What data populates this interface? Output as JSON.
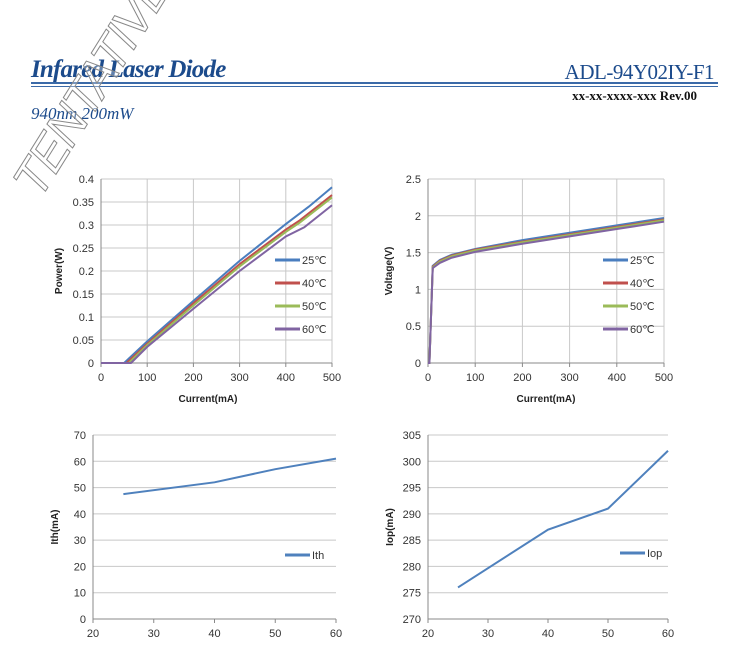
{
  "header": {
    "title": "Infared Laser Diode",
    "model": "ADL-94Y02IY-F1",
    "doc_number": "xx-xx-xxxx-xxx  Rev.00",
    "subtitle": "940nm 200mW",
    "watermark": "TENTATIVE"
  },
  "colors": {
    "25": "#4a7ebf",
    "40": "#c0504d",
    "50": "#9bbb59",
    "60": "#8064a2",
    "single": "#4f81bd"
  },
  "chart_data": [
    {
      "type": "line",
      "title": "",
      "xlabel": "Current(mA)",
      "ylabel": "Power(W)",
      "xlim": [
        0,
        500
      ],
      "ylim": [
        0,
        0.4
      ],
      "xticks": [
        "0",
        "100",
        "200",
        "300",
        "400",
        "500"
      ],
      "yticks": [
        "0",
        "0.05",
        "0.1",
        "0.15",
        "0.2",
        "0.25",
        "0.3",
        "0.35",
        "0.4"
      ],
      "grid": "both",
      "legend": "right",
      "series": [
        {
          "name": "25℃",
          "color_key": "25",
          "points": [
            [
              0,
              0
            ],
            [
              50,
              0
            ],
            [
              100,
              0.047
            ],
            [
              200,
              0.135
            ],
            [
              300,
              0.222
            ],
            [
              400,
              0.302
            ],
            [
              450,
              0.34
            ],
            [
              500,
              0.382
            ]
          ]
        },
        {
          "name": "40℃",
          "color_key": "40",
          "points": [
            [
              0,
              0
            ],
            [
              55,
              0
            ],
            [
              100,
              0.042
            ],
            [
              200,
              0.13
            ],
            [
              300,
              0.215
            ],
            [
              400,
              0.29
            ],
            [
              430,
              0.31
            ],
            [
              500,
              0.365
            ]
          ]
        },
        {
          "name": "50℃",
          "color_key": "50",
          "points": [
            [
              0,
              0
            ],
            [
              60,
              0
            ],
            [
              100,
              0.039
            ],
            [
              200,
              0.125
            ],
            [
              300,
              0.21
            ],
            [
              400,
              0.285
            ],
            [
              430,
              0.305
            ],
            [
              500,
              0.36
            ]
          ]
        },
        {
          "name": "60℃",
          "color_key": "60",
          "points": [
            [
              0,
              0
            ],
            [
              65,
              0
            ],
            [
              100,
              0.035
            ],
            [
              200,
              0.118
            ],
            [
              300,
              0.2
            ],
            [
              400,
              0.275
            ],
            [
              440,
              0.295
            ],
            [
              500,
              0.343
            ]
          ]
        }
      ]
    },
    {
      "type": "line",
      "title": "",
      "xlabel": "Current(mA)",
      "ylabel": "Voltage(V)",
      "xlim": [
        0,
        500
      ],
      "ylim": [
        0,
        2.5
      ],
      "xticks": [
        "0",
        "100",
        "200",
        "300",
        "400",
        "500"
      ],
      "yticks": [
        "0",
        "0.5",
        "1",
        "1.5",
        "2",
        "2.5"
      ],
      "grid": "both",
      "legend": "right",
      "series": [
        {
          "name": "25℃",
          "color_key": "25",
          "points": [
            [
              0,
              0
            ],
            [
              3,
              0
            ],
            [
              10,
              1.32
            ],
            [
              25,
              1.4
            ],
            [
              50,
              1.47
            ],
            [
              100,
              1.55
            ],
            [
              200,
              1.67
            ],
            [
              300,
              1.77
            ],
            [
              400,
              1.87
            ],
            [
              500,
              1.97
            ]
          ]
        },
        {
          "name": "40℃",
          "color_key": "40",
          "points": [
            [
              0,
              0
            ],
            [
              3,
              0
            ],
            [
              10,
              1.31
            ],
            [
              25,
              1.39
            ],
            [
              50,
              1.46
            ],
            [
              100,
              1.54
            ],
            [
              200,
              1.65
            ],
            [
              300,
              1.75
            ],
            [
              400,
              1.85
            ],
            [
              500,
              1.95
            ]
          ]
        },
        {
          "name": "50℃",
          "color_key": "50",
          "points": [
            [
              0,
              0
            ],
            [
              3,
              0
            ],
            [
              10,
              1.3
            ],
            [
              25,
              1.38
            ],
            [
              50,
              1.45
            ],
            [
              100,
              1.53
            ],
            [
              200,
              1.64
            ],
            [
              300,
              1.74
            ],
            [
              400,
              1.84
            ],
            [
              500,
              1.94
            ]
          ]
        },
        {
          "name": "60℃",
          "color_key": "60",
          "points": [
            [
              0,
              0
            ],
            [
              3,
              0
            ],
            [
              10,
              1.29
            ],
            [
              25,
              1.36
            ],
            [
              50,
              1.43
            ],
            [
              100,
              1.51
            ],
            [
              200,
              1.62
            ],
            [
              300,
              1.72
            ],
            [
              400,
              1.82
            ],
            [
              500,
              1.92
            ]
          ]
        }
      ]
    },
    {
      "type": "line",
      "title": "",
      "xlabel": "",
      "ylabel": "Ith(mA)",
      "xlim": [
        20,
        60
      ],
      "ylim": [
        0,
        70
      ],
      "xticks": [
        "20",
        "30",
        "40",
        "50",
        "60"
      ],
      "yticks": [
        "0",
        "10",
        "20",
        "30",
        "40",
        "50",
        "60",
        "70"
      ],
      "grid": "horizontal",
      "legend": "right",
      "series": [
        {
          "name": "Ith",
          "color_key": "single",
          "points": [
            [
              25,
              47.5
            ],
            [
              40,
              52
            ],
            [
              50,
              57
            ],
            [
              60,
              61
            ]
          ]
        }
      ]
    },
    {
      "type": "line",
      "title": "",
      "xlabel": "",
      "ylabel": "Iop(mA)",
      "xlim": [
        20,
        60
      ],
      "ylim": [
        270,
        305
      ],
      "xticks": [
        "20",
        "30",
        "40",
        "50",
        "60"
      ],
      "yticks": [
        "270",
        "275",
        "280",
        "285",
        "290",
        "295",
        "300",
        "305"
      ],
      "grid": "horizontal",
      "legend": "right",
      "series": [
        {
          "name": "Iop",
          "color_key": "single",
          "points": [
            [
              25,
              276
            ],
            [
              40,
              287
            ],
            [
              50,
              291
            ],
            [
              60,
              302
            ]
          ]
        }
      ]
    }
  ]
}
